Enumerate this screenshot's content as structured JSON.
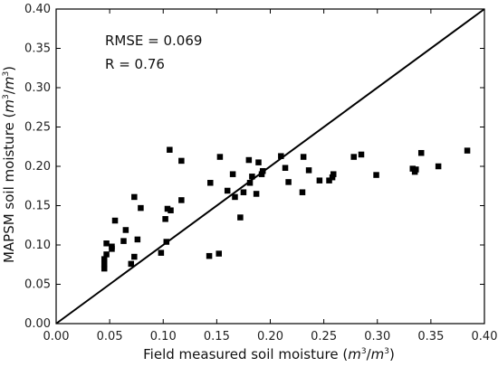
{
  "chart_data": {
    "type": "scatter",
    "xlabel_text": "Field measured soil moisture",
    "xlabel_unit_num": "m",
    "xlabel_unit_exp1": "3",
    "xlabel_unit_den": "m",
    "xlabel_unit_exp2": "3",
    "ylabel_text": "MAPSM soil moisture",
    "ylabel_unit_num": "m",
    "ylabel_unit_exp1": "3",
    "ylabel_unit_den": "m",
    "ylabel_unit_exp2": "3",
    "xlim": [
      0.0,
      0.4
    ],
    "ylim": [
      0.0,
      0.4
    ],
    "x_ticks": [
      "0.00",
      "0.05",
      "0.10",
      "0.15",
      "0.20",
      "0.25",
      "0.30",
      "0.35",
      "0.40"
    ],
    "y_ticks": [
      "0.00",
      "0.05",
      "0.10",
      "0.15",
      "0.20",
      "0.25",
      "0.30",
      "0.35",
      "0.40"
    ],
    "annotations": [
      "RMSE = 0.069",
      "R = 0.76"
    ],
    "reference_line": {
      "from": [
        0.0,
        0.0
      ],
      "to": [
        0.4,
        0.4
      ]
    },
    "marker": "square",
    "marker_color": "#000000",
    "points": [
      [
        0.045,
        0.07
      ],
      [
        0.045,
        0.075
      ],
      [
        0.045,
        0.082
      ],
      [
        0.047,
        0.088
      ],
      [
        0.047,
        0.102
      ],
      [
        0.052,
        0.098
      ],
      [
        0.052,
        0.095
      ],
      [
        0.055,
        0.131
      ],
      [
        0.063,
        0.105
      ],
      [
        0.065,
        0.119
      ],
      [
        0.07,
        0.076
      ],
      [
        0.073,
        0.085
      ],
      [
        0.073,
        0.161
      ],
      [
        0.076,
        0.107
      ],
      [
        0.079,
        0.147
      ],
      [
        0.098,
        0.09
      ],
      [
        0.102,
        0.133
      ],
      [
        0.103,
        0.104
      ],
      [
        0.104,
        0.146
      ],
      [
        0.106,
        0.221
      ],
      [
        0.107,
        0.144
      ],
      [
        0.117,
        0.207
      ],
      [
        0.117,
        0.157
      ],
      [
        0.143,
        0.086
      ],
      [
        0.144,
        0.179
      ],
      [
        0.152,
        0.089
      ],
      [
        0.153,
        0.212
      ],
      [
        0.16,
        0.169
      ],
      [
        0.165,
        0.19
      ],
      [
        0.167,
        0.161
      ],
      [
        0.172,
        0.135
      ],
      [
        0.175,
        0.167
      ],
      [
        0.18,
        0.208
      ],
      [
        0.181,
        0.179
      ],
      [
        0.183,
        0.187
      ],
      [
        0.187,
        0.165
      ],
      [
        0.189,
        0.205
      ],
      [
        0.192,
        0.19
      ],
      [
        0.193,
        0.194
      ],
      [
        0.21,
        0.213
      ],
      [
        0.214,
        0.198
      ],
      [
        0.217,
        0.18
      ],
      [
        0.23,
        0.167
      ],
      [
        0.231,
        0.212
      ],
      [
        0.236,
        0.195
      ],
      [
        0.246,
        0.182
      ],
      [
        0.255,
        0.182
      ],
      [
        0.258,
        0.186
      ],
      [
        0.259,
        0.19
      ],
      [
        0.278,
        0.212
      ],
      [
        0.285,
        0.215
      ],
      [
        0.299,
        0.189
      ],
      [
        0.333,
        0.197
      ],
      [
        0.335,
        0.193
      ],
      [
        0.336,
        0.196
      ],
      [
        0.341,
        0.217
      ],
      [
        0.357,
        0.2
      ],
      [
        0.384,
        0.22
      ]
    ]
  }
}
